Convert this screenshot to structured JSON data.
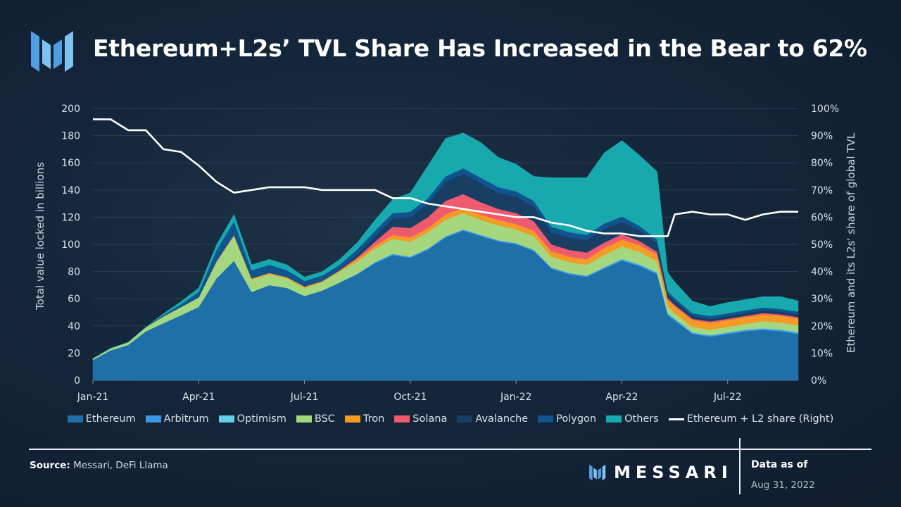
{
  "header": {
    "title": "Ethereum+L2s’ TVL Share Has Increased in the Bear to 62%"
  },
  "footer": {
    "source_label": "Source:",
    "source_text": " Messari, DeFi Llama",
    "brand": "MESSARI",
    "data_as_of_label": "Data as of",
    "data_as_of_date": "Aug 31, 2022"
  },
  "chart_data": {
    "type": "area",
    "stacked": true,
    "xlabel": "",
    "ylabel": "Total value locked in billions",
    "y2label": "Ethereum and its L2s' share of global TVL",
    "ylim": [
      0,
      200
    ],
    "y2lim": [
      0,
      100
    ],
    "yticks": [
      "0",
      "20",
      "40",
      "60",
      "80",
      "100",
      "120",
      "140",
      "160",
      "180",
      "200"
    ],
    "y2ticks": [
      "0%",
      "10%",
      "20%",
      "30%",
      "40%",
      "50%",
      "60%",
      "70%",
      "80%",
      "90%",
      "100%"
    ],
    "grid": true,
    "legend_position": "bottom",
    "x_tick_labels": [
      {
        "label": "Jan-21",
        "month": 0
      },
      {
        "label": "Apr-21",
        "month": 3
      },
      {
        "label": "Jul-21",
        "month": 6
      },
      {
        "label": "Oct-21",
        "month": 9
      },
      {
        "label": "Jan-22",
        "month": 12
      },
      {
        "label": "Apr-22",
        "month": 15
      },
      {
        "label": "Jul-22",
        "month": 18
      }
    ],
    "x_range_months": [
      0,
      20
    ],
    "x": [
      0,
      0.5,
      1,
      1.5,
      2,
      2.5,
      3,
      3.5,
      4,
      4.5,
      5,
      5.5,
      6,
      6.5,
      7,
      7.5,
      8,
      8.5,
      9,
      9.5,
      10,
      10.5,
      11,
      11.5,
      12,
      12.5,
      13,
      13.5,
      14,
      14.5,
      15,
      15.5,
      16,
      16.3,
      16.5,
      17,
      17.5,
      18,
      18.5,
      19,
      19.5,
      20
    ],
    "series": [
      {
        "name": "Ethereum",
        "color": "#1f6fa8",
        "values": [
          15,
          22,
          26,
          36,
          42,
          48,
          54,
          75,
          88,
          65,
          70,
          68,
          62,
          66,
          72,
          78,
          86,
          92,
          90,
          96,
          105,
          110,
          106,
          102,
          100,
          95,
          82,
          78,
          76,
          82,
          88,
          84,
          78,
          48,
          44,
          34,
          32,
          34,
          36,
          37,
          36,
          34
        ]
      },
      {
        "name": "Arbitrum",
        "color": "#3c97e6",
        "values": [
          0,
          0,
          0,
          0,
          0,
          0,
          0,
          0,
          0,
          0,
          0,
          0,
          0,
          0,
          0,
          0.5,
          1,
          1,
          1,
          1,
          1,
          1,
          1,
          1,
          1,
          1,
          1,
          1,
          1,
          1,
          1,
          1,
          1,
          1,
          1,
          1,
          1,
          1,
          1,
          1,
          1,
          1
        ]
      },
      {
        "name": "Optimism",
        "color": "#5fd0ea",
        "values": [
          0,
          0,
          0,
          0,
          0,
          0,
          0,
          0,
          0,
          0,
          0,
          0,
          0,
          0,
          0,
          0,
          0,
          0,
          0,
          0,
          0,
          0,
          0,
          0,
          0,
          0,
          0,
          0,
          0,
          0.3,
          0.5,
          0.5,
          0.5,
          0.4,
          0.4,
          0.3,
          0.3,
          0.3,
          0.4,
          0.5,
          0.5,
          0.5
        ]
      },
      {
        "name": "BSC",
        "color": "#a4d77e",
        "values": [
          1,
          1.5,
          2,
          3,
          5,
          6,
          7,
          12,
          18,
          9,
          8,
          7,
          6,
          6,
          8,
          9,
          10,
          11,
          11,
          12,
          12,
          12,
          11,
          11,
          10,
          10,
          8,
          8,
          8,
          9,
          9,
          9,
          8,
          5,
          4,
          4,
          4,
          4,
          4,
          5,
          5,
          5
        ]
      },
      {
        "name": "Tron",
        "color": "#f59b25",
        "values": [
          0,
          0,
          0,
          0,
          0,
          0,
          0,
          0.5,
          1,
          1,
          1,
          1,
          1,
          1,
          1,
          2,
          2,
          3,
          3,
          3,
          4,
          4,
          4,
          4,
          4,
          4,
          4,
          4,
          4,
          5,
          5,
          5,
          5,
          5,
          5,
          5,
          5,
          5,
          5,
          5,
          5,
          5
        ]
      },
      {
        "name": "Solana",
        "color": "#f05a6f",
        "values": [
          0,
          0,
          0,
          0,
          0,
          0,
          0,
          0,
          0,
          0,
          0,
          0,
          0,
          0,
          0,
          1,
          3,
          6,
          7,
          8,
          10,
          10,
          9,
          8,
          8,
          7,
          5,
          5,
          5,
          4,
          4,
          3,
          2,
          1,
          1,
          1,
          1,
          1,
          1,
          1,
          1,
          1
        ]
      },
      {
        "name": "Avalanche",
        "color": "#183f63",
        "values": [
          0,
          0,
          0,
          0,
          0,
          0,
          0,
          0,
          0,
          0,
          0,
          0,
          0,
          0,
          0,
          2,
          4,
          6,
          8,
          10,
          14,
          15,
          14,
          12,
          12,
          11,
          9,
          9,
          9,
          10,
          9,
          8,
          6,
          3,
          3,
          2,
          2,
          2,
          2,
          2,
          2,
          2
        ]
      },
      {
        "name": "Polygon",
        "color": "#0f548f",
        "values": [
          0,
          0,
          0,
          0,
          1,
          2,
          4,
          8,
          10,
          6,
          6,
          5,
          4,
          4,
          4,
          4,
          4,
          4,
          4,
          4,
          4,
          4,
          4,
          4,
          4,
          4,
          4,
          4,
          4,
          4,
          4,
          3,
          3,
          2,
          2,
          2,
          2,
          2,
          2,
          2,
          2,
          2
        ]
      },
      {
        "name": "Others",
        "color": "#17a9ad",
        "values": [
          0,
          0,
          0,
          0,
          1,
          2,
          3,
          4,
          5,
          4,
          4,
          4,
          3,
          3,
          4,
          5,
          8,
          10,
          14,
          24,
          28,
          26,
          26,
          22,
          20,
          18,
          36,
          40,
          42,
          52,
          56,
          52,
          50,
          14,
          12,
          9,
          7,
          8,
          8,
          8,
          9,
          8
        ]
      },
      {
        "name": "Ethereum + L2 share (Right)",
        "color": "#ffffff",
        "line": true,
        "values": [
          96,
          96,
          92,
          92,
          85,
          84,
          79,
          73,
          69,
          70,
          71,
          71,
          71,
          70,
          70,
          70,
          70,
          67,
          67,
          65,
          64,
          63,
          62,
          61,
          60,
          60,
          58,
          57,
          55,
          54,
          54,
          53,
          53,
          53,
          61,
          62,
          61,
          61,
          59,
          61,
          62,
          62
        ]
      }
    ]
  }
}
